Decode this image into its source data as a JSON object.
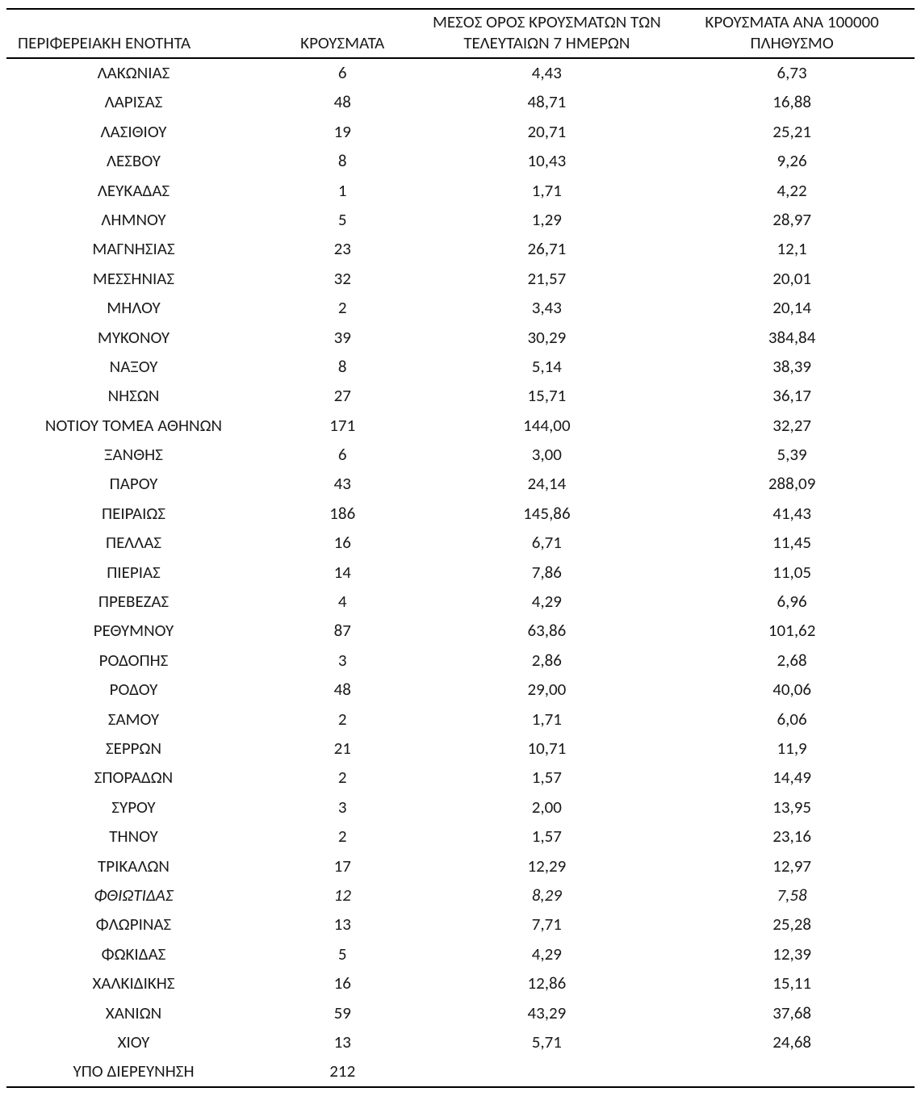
{
  "table": {
    "columns": [
      "ΠΕΡΙΦΕΡΕΙΑΚΗ ΕΝΟΤΗΤΑ",
      "ΚΡΟΥΣΜΑΤΑ",
      "ΜΕΣΟΣ ΟΡΟΣ ΚΡΟΥΣΜΑΤΩΝ ΤΩΝ ΤΕΛΕΥΤΑΙΩΝ 7 ΗΜΕΡΩΝ",
      "ΚΡΟΥΣΜΑΤΑ ΑΝΑ 100000 ΠΛΗΘΥΣΜΟ"
    ],
    "column_align": [
      "left",
      "center",
      "center",
      "center"
    ],
    "header_fontsize": 21,
    "body_fontsize": 21,
    "border_color": "#000000",
    "background_color": "#ffffff",
    "text_color": "#1a1a1a",
    "rows": [
      {
        "region": "ΛΑΚΩΝΙΑΣ",
        "cases": "6",
        "avg7": "4,43",
        "per100k": "6,73"
      },
      {
        "region": "ΛΑΡΙΣΑΣ",
        "cases": "48",
        "avg7": "48,71",
        "per100k": "16,88"
      },
      {
        "region": "ΛΑΣΙΘΙΟΥ",
        "cases": "19",
        "avg7": "20,71",
        "per100k": "25,21"
      },
      {
        "region": "ΛΕΣΒΟΥ",
        "cases": "8",
        "avg7": "10,43",
        "per100k": "9,26"
      },
      {
        "region": "ΛΕΥΚΑΔΑΣ",
        "cases": "1",
        "avg7": "1,71",
        "per100k": "4,22"
      },
      {
        "region": "ΛΗΜΝΟΥ",
        "cases": "5",
        "avg7": "1,29",
        "per100k": "28,97"
      },
      {
        "region": "ΜΑΓΝΗΣΙΑΣ",
        "cases": "23",
        "avg7": "26,71",
        "per100k": "12,1"
      },
      {
        "region": "ΜΕΣΣΗΝΙΑΣ",
        "cases": "32",
        "avg7": "21,57",
        "per100k": "20,01"
      },
      {
        "region": "ΜΗΛΟΥ",
        "cases": "2",
        "avg7": "3,43",
        "per100k": "20,14"
      },
      {
        "region": "ΜΥΚΟΝΟΥ",
        "cases": "39",
        "avg7": "30,29",
        "per100k": "384,84"
      },
      {
        "region": "ΝΑΞΟΥ",
        "cases": "8",
        "avg7": "5,14",
        "per100k": "38,39"
      },
      {
        "region": "ΝΗΣΩΝ",
        "cases": "27",
        "avg7": "15,71",
        "per100k": "36,17"
      },
      {
        "region": "ΝΟΤΙΟΥ ΤΟΜΕΑ ΑΘΗΝΩΝ",
        "cases": "171",
        "avg7": "144,00",
        "per100k": "32,27"
      },
      {
        "region": "ΞΑΝΘΗΣ",
        "cases": "6",
        "avg7": "3,00",
        "per100k": "5,39"
      },
      {
        "region": "ΠΑΡΟΥ",
        "cases": "43",
        "avg7": "24,14",
        "per100k": "288,09"
      },
      {
        "region": "ΠΕΙΡΑΙΩΣ",
        "cases": "186",
        "avg7": "145,86",
        "per100k": "41,43"
      },
      {
        "region": "ΠΕΛΛΑΣ",
        "cases": "16",
        "avg7": "6,71",
        "per100k": "11,45"
      },
      {
        "region": "ΠΙΕΡΙΑΣ",
        "cases": "14",
        "avg7": "7,86",
        "per100k": "11,05"
      },
      {
        "region": "ΠΡΕΒΕΖΑΣ",
        "cases": "4",
        "avg7": "4,29",
        "per100k": "6,96"
      },
      {
        "region": "ΡΕΘΥΜΝΟΥ",
        "cases": "87",
        "avg7": "63,86",
        "per100k": "101,62"
      },
      {
        "region": "ΡΟΔΟΠΗΣ",
        "cases": "3",
        "avg7": "2,86",
        "per100k": "2,68"
      },
      {
        "region": "ΡΟΔΟΥ",
        "cases": "48",
        "avg7": "29,00",
        "per100k": "40,06"
      },
      {
        "region": "ΣΑΜΟΥ",
        "cases": "2",
        "avg7": "1,71",
        "per100k": "6,06"
      },
      {
        "region": "ΣΕΡΡΩΝ",
        "cases": "21",
        "avg7": "10,71",
        "per100k": "11,9"
      },
      {
        "region": "ΣΠΟΡΑΔΩΝ",
        "cases": "2",
        "avg7": "1,57",
        "per100k": "14,49"
      },
      {
        "region": "ΣΥΡΟΥ",
        "cases": "3",
        "avg7": "2,00",
        "per100k": "13,95"
      },
      {
        "region": "ΤΗΝΟΥ",
        "cases": "2",
        "avg7": "1,57",
        "per100k": "23,16"
      },
      {
        "region": "ΤΡΙΚΑΛΩΝ",
        "cases": "17",
        "avg7": "12,29",
        "per100k": "12,97"
      },
      {
        "region": "ΦΘΙΩΤΙΔΑΣ",
        "cases": "12",
        "avg7": "8,29",
        "per100k": "7,58",
        "italic": true
      },
      {
        "region": "ΦΛΩΡΙΝΑΣ",
        "cases": "13",
        "avg7": "7,71",
        "per100k": "25,28"
      },
      {
        "region": "ΦΩΚΙΔΑΣ",
        "cases": "5",
        "avg7": "4,29",
        "per100k": "12,39"
      },
      {
        "region": "ΧΑΛΚΙΔΙΚΗΣ",
        "cases": "16",
        "avg7": "12,86",
        "per100k": "15,11"
      },
      {
        "region": "ΧΑΝΙΩΝ",
        "cases": "59",
        "avg7": "43,29",
        "per100k": "37,68"
      },
      {
        "region": "ΧΙΟΥ",
        "cases": "13",
        "avg7": "5,71",
        "per100k": "24,68"
      },
      {
        "region": "ΥΠΟ ΔΙΕΡΕΥΝΗΣΗ",
        "cases": "212",
        "avg7": "",
        "per100k": ""
      }
    ]
  }
}
